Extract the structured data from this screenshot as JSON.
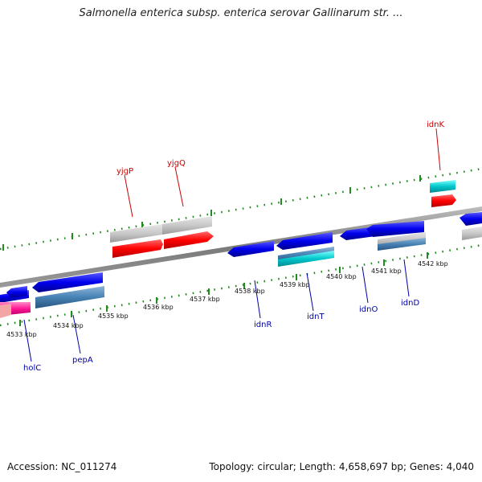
{
  "title": "Salmonella enterica subsp. enterica serovar Gallinarum str. ...",
  "footer": {
    "accession": "Accession: NC_011274",
    "summary": "Topology: circular; Length: 4,658,697 bp; Genes: 4,040"
  },
  "colors": {
    "forward_gene": "#ff0000",
    "reverse_gene": "#0000ee",
    "forward_label": "#cc0000",
    "reverse_label": "#0000aa",
    "tick": "#228b22",
    "backbone": "#888888",
    "pseudo_gene": "#c8c8c8",
    "cyan_feature": "#00c0c8",
    "steel_feature": "#4682b4",
    "pink_feature": "#ff1493"
  },
  "scale_labels": [
    "4533 kbp",
    "4534 kbp",
    "4535 kbp",
    "4536 kbp",
    "4537 kbp",
    "4538 kbp",
    "4539 kbp",
    "4540 kbp",
    "4541 kbp",
    "4542 kbp"
  ],
  "genes_top": [
    "yjgP",
    "yjgQ",
    "idnK"
  ],
  "genes_bottom": [
    "holC",
    "pepA",
    "idnR",
    "idnT",
    "idnO",
    "idnD"
  ]
}
